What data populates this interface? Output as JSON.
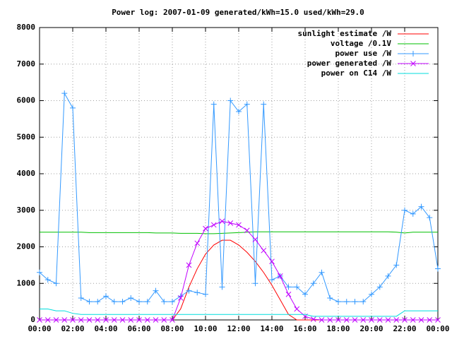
{
  "chart_data": {
    "type": "line",
    "title": "Power log: 2007-01-09 generated/kWh=15.0 used/kWh=29.0",
    "x": [
      "00:00",
      "00:30",
      "01:00",
      "01:30",
      "02:00",
      "02:30",
      "03:00",
      "03:30",
      "04:00",
      "04:30",
      "05:00",
      "05:30",
      "06:00",
      "06:30",
      "07:00",
      "07:30",
      "08:00",
      "08:30",
      "09:00",
      "09:30",
      "10:00",
      "10:30",
      "11:00",
      "11:30",
      "12:00",
      "12:30",
      "13:00",
      "13:30",
      "14:00",
      "14:30",
      "15:00",
      "15:30",
      "16:00",
      "16:30",
      "17:00",
      "17:30",
      "18:00",
      "18:30",
      "19:00",
      "19:30",
      "20:00",
      "20:30",
      "21:00",
      "21:30",
      "22:00",
      "22:30",
      "23:00",
      "23:30",
      "24:00"
    ],
    "series": [
      {
        "name": "sunlight estimate /W",
        "color": "#ff0000",
        "marker": null,
        "values": [
          0,
          0,
          0,
          0,
          0,
          0,
          0,
          0,
          0,
          0,
          0,
          0,
          0,
          0,
          0,
          0,
          0,
          300,
          900,
          1400,
          1800,
          2050,
          2180,
          2180,
          2050,
          1850,
          1600,
          1300,
          950,
          550,
          150,
          0,
          0,
          0,
          0,
          0,
          0,
          0,
          0,
          0,
          0,
          0,
          0,
          0,
          0,
          0,
          0,
          0,
          0
        ]
      },
      {
        "name": "voltage /0.1V",
        "color": "#00c000",
        "marker": null,
        "values": [
          2400,
          2400,
          2400,
          2400,
          2400,
          2400,
          2390,
          2390,
          2390,
          2390,
          2390,
          2390,
          2390,
          2390,
          2380,
          2380,
          2380,
          2370,
          2370,
          2370,
          2360,
          2360,
          2370,
          2380,
          2390,
          2400,
          2410,
          2410,
          2410,
          2410,
          2410,
          2410,
          2410,
          2410,
          2410,
          2410,
          2410,
          2410,
          2410,
          2410,
          2410,
          2410,
          2410,
          2400,
          2380,
          2400,
          2400,
          2400,
          2400
        ]
      },
      {
        "name": "power use /W",
        "color": "#3399ff",
        "marker": "plus",
        "values": [
          1300,
          1100,
          1000,
          6200,
          5800,
          600,
          500,
          500,
          650,
          500,
          500,
          600,
          500,
          500,
          800,
          500,
          500,
          650,
          800,
          750,
          700,
          5900,
          900,
          6000,
          5700,
          5900,
          1000,
          5900,
          1100,
          1200,
          900,
          900,
          700,
          1000,
          1300,
          600,
          500,
          500,
          500,
          500,
          700,
          900,
          1200,
          1500,
          3000,
          2900,
          3100,
          2800,
          1400
        ]
      },
      {
        "name": "power generated /W",
        "color": "#c000ff",
        "marker": "cross",
        "values": [
          0,
          0,
          0,
          0,
          0,
          0,
          0,
          0,
          0,
          0,
          0,
          0,
          0,
          0,
          0,
          0,
          0,
          600,
          1500,
          2100,
          2500,
          2600,
          2700,
          2650,
          2600,
          2450,
          2200,
          1900,
          1600,
          1200,
          700,
          300,
          100,
          20,
          0,
          0,
          0,
          0,
          0,
          0,
          0,
          0,
          0,
          0,
          0,
          0,
          0,
          0,
          0
        ]
      },
      {
        "name": "power on C14 /W",
        "color": "#00dddd",
        "marker": null,
        "values": [
          300,
          300,
          250,
          250,
          180,
          150,
          150,
          150,
          150,
          150,
          150,
          150,
          150,
          150,
          150,
          150,
          150,
          150,
          150,
          150,
          150,
          150,
          150,
          150,
          150,
          150,
          150,
          150,
          150,
          150,
          150,
          150,
          150,
          100,
          100,
          100,
          100,
          100,
          100,
          100,
          100,
          100,
          100,
          100,
          250,
          250,
          250,
          250,
          250
        ]
      }
    ],
    "xlim": [
      "00:00",
      "24:00"
    ],
    "xticks": [
      "00:00",
      "02:00",
      "04:00",
      "06:00",
      "08:00",
      "10:00",
      "12:00",
      "14:00",
      "16:00",
      "18:00",
      "20:00",
      "22:00",
      {
        "value": "24:00",
        "label": "00:00"
      }
    ],
    "ylim": [
      0,
      8000
    ],
    "yticks": [
      0,
      1000,
      2000,
      3000,
      4000,
      5000,
      6000,
      7000,
      8000
    ],
    "grid": true,
    "legend": "top-right"
  }
}
